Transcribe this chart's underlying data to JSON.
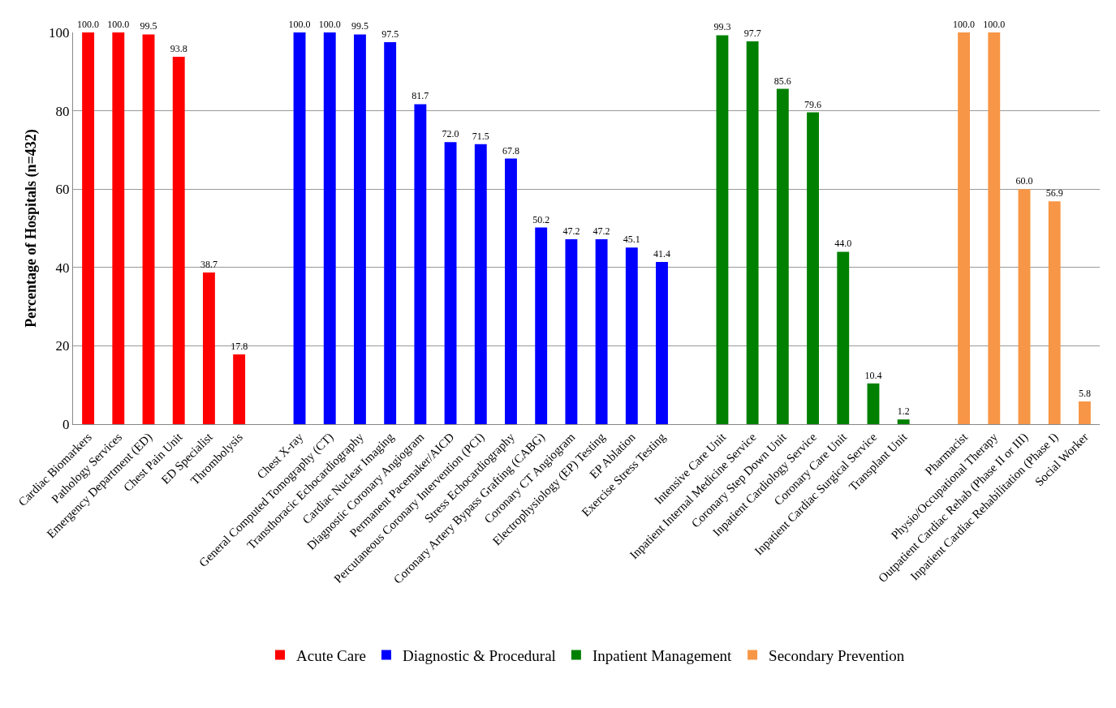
{
  "chart_data": {
    "type": "bar",
    "ylabel": "Percentage of Hospitals (n=432)",
    "categories": [
      "Cardiac Biomarkers",
      "Pathology Services",
      "Emergency Department (ED)",
      "Chest Pain Unit",
      "ED Specialist",
      "Thrombolysis",
      null,
      "Chest X-ray",
      "General Computed Tomography (CT)",
      "Transthoracic Echocardiography",
      "Cardiac Nuclear Imaging",
      "Diagnostic Coronary Angiogram",
      "Permanent Pacemaker/AICD",
      "Percutaneous Coronary Intervention (PCI)",
      "Stress Echocardiography",
      "Coronary Artery Bypass Grafting (CABG)",
      "Coronary CT Angiogram",
      "Electrophysiology (EP) Testing",
      "EP Ablation",
      "Exercise Stress Testing",
      null,
      "Intensive Care Unit",
      "Inpatient Internal Medicine Service",
      "Coronary Step Down Unit",
      "Inpatient Cardiology Service",
      "Coronary Care Unit",
      "Inpatient Cardiac Surgical Service",
      "Transplant Unit",
      null,
      "Pharmacist",
      "Physio/Occupational Therapy",
      "Outpatient Cardiac Rehab (Phase II or III)",
      "Inpatient Cardiac Rehabilitation (Phase I)",
      "Social Worker"
    ],
    "series": [
      {
        "name": "Acute Care",
        "color": "#ff0000",
        "values": [
          100.0,
          100.0,
          99.5,
          93.8,
          38.7,
          17.8,
          null,
          null,
          null,
          null,
          null,
          null,
          null,
          null,
          null,
          null,
          null,
          null,
          null,
          null,
          null,
          null,
          null,
          null,
          null,
          null,
          null,
          null,
          null,
          null,
          null,
          null,
          null,
          null
        ],
        "value_labels": [
          "100.0",
          "100.0",
          "99.5",
          "93.8",
          "38.7",
          "17.8",
          null,
          null,
          null,
          null,
          null,
          null,
          null,
          null,
          null,
          null,
          null,
          null,
          null,
          null,
          null,
          null,
          null,
          null,
          null,
          null,
          null,
          null,
          null,
          null,
          null,
          null,
          null,
          null
        ]
      },
      {
        "name": "Diagnostic & Procedural",
        "color": "#0000ff",
        "values": [
          null,
          null,
          null,
          null,
          null,
          null,
          null,
          100.0,
          100.0,
          99.5,
          97.5,
          81.7,
          72.0,
          71.5,
          67.8,
          50.2,
          47.2,
          47.2,
          45.1,
          41.4,
          null,
          null,
          null,
          null,
          null,
          null,
          null,
          null,
          null,
          null,
          null,
          null,
          null,
          null
        ],
        "value_labels": [
          null,
          null,
          null,
          null,
          null,
          null,
          null,
          "100.0",
          "100.0",
          "99.5",
          "97.5",
          "81.7",
          "72.0",
          "71.5",
          "67.8",
          "50.2",
          "47.2",
          "47.2",
          "45.1",
          "41.4",
          null,
          null,
          null,
          null,
          null,
          null,
          null,
          null,
          null,
          null,
          null,
          null,
          null,
          null
        ]
      },
      {
        "name": "Inpatient Management",
        "color": "#008000",
        "values": [
          null,
          null,
          null,
          null,
          null,
          null,
          null,
          null,
          null,
          null,
          null,
          null,
          null,
          null,
          null,
          null,
          null,
          null,
          null,
          null,
          null,
          99.3,
          97.7,
          85.6,
          79.6,
          44.0,
          10.4,
          1.2,
          null,
          null,
          null,
          null,
          null,
          null
        ],
        "value_labels": [
          null,
          null,
          null,
          null,
          null,
          null,
          null,
          null,
          null,
          null,
          null,
          null,
          null,
          null,
          null,
          null,
          null,
          null,
          null,
          null,
          null,
          "99.3",
          "97.7",
          "85.6",
          "79.6",
          "44.0",
          "10.4",
          "1.2",
          null,
          null,
          null,
          null,
          null,
          null
        ]
      },
      {
        "name": "Secondary Prevention",
        "color": "#f79646",
        "values": [
          null,
          null,
          null,
          null,
          null,
          null,
          null,
          null,
          null,
          null,
          null,
          null,
          null,
          null,
          null,
          null,
          null,
          null,
          null,
          null,
          null,
          null,
          null,
          null,
          null,
          null,
          null,
          null,
          null,
          100.0,
          100.0,
          60.0,
          56.9,
          5.8
        ],
        "value_labels": [
          null,
          null,
          null,
          null,
          null,
          null,
          null,
          null,
          null,
          null,
          null,
          null,
          null,
          null,
          null,
          null,
          null,
          null,
          null,
          null,
          null,
          null,
          null,
          null,
          null,
          null,
          null,
          null,
          null,
          "100.0",
          "100.0",
          "60.0",
          "56.9",
          "5.8"
        ]
      }
    ],
    "ylim": [
      0,
      100
    ],
    "yticks": [
      0,
      20,
      40,
      60,
      80,
      100
    ],
    "grid": "y",
    "legend": "bottom"
  }
}
